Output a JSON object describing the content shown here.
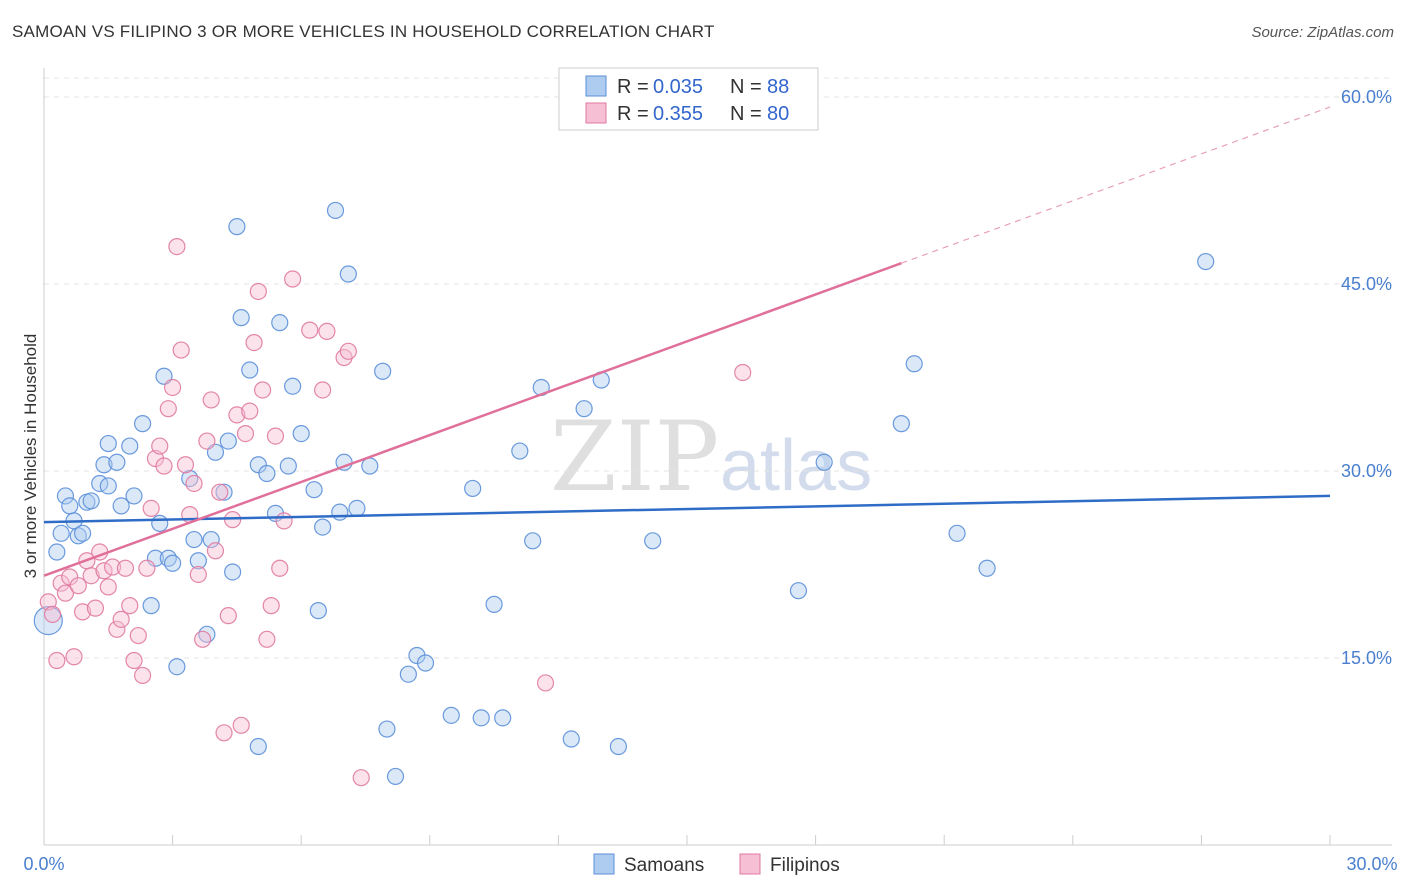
{
  "chart_data": {
    "type": "scatter",
    "title": "SAMOAN VS FILIPINO 3 OR MORE VEHICLES IN HOUSEHOLD CORRELATION CHART",
    "source": "Source: ZipAtlas.com",
    "xlabel": "",
    "ylabel": "3 or more Vehicles in Household",
    "xlim": [
      0,
      30
    ],
    "ylim": [
      0,
      60
    ],
    "x_tick_labels": {
      "left": "0.0%",
      "right": "30.0%"
    },
    "y_ticks": [
      {
        "value": 15,
        "label": "15.0%"
      },
      {
        "value": 30,
        "label": "30.0%"
      },
      {
        "value": 45,
        "label": "45.0%"
      },
      {
        "value": 60,
        "label": "60.0%"
      }
    ],
    "watermark": {
      "zip": "ZIP",
      "atlas": "atlas"
    },
    "legend": [
      {
        "r_label": "R =",
        "r_value": "0.035",
        "n_label": "N =",
        "n_value": "88"
      },
      {
        "r_label": "R =",
        "r_value": "0.355",
        "n_label": "N =",
        "n_value": "80"
      }
    ],
    "series": [
      {
        "name": "Samoans",
        "color": "#5b8fd9",
        "fill": "#aecbf0",
        "trend": {
          "x0": 0,
          "y0": 25.9,
          "x1": 30,
          "y1": 28.0,
          "solid_until": 30
        },
        "points": [
          [
            0.1,
            18.0
          ],
          [
            0.3,
            23.5
          ],
          [
            0.4,
            25.0
          ],
          [
            0.5,
            28.0
          ],
          [
            0.6,
            27.2
          ],
          [
            0.7,
            26.0
          ],
          [
            0.8,
            24.8
          ],
          [
            0.9,
            25.0
          ],
          [
            1.0,
            27.5
          ],
          [
            1.1,
            27.6
          ],
          [
            1.3,
            29.0
          ],
          [
            1.4,
            30.5
          ],
          [
            1.5,
            32.2
          ],
          [
            1.5,
            28.8
          ],
          [
            1.7,
            30.7
          ],
          [
            1.8,
            27.2
          ],
          [
            2.0,
            32.0
          ],
          [
            2.1,
            28.0
          ],
          [
            2.3,
            33.8
          ],
          [
            2.5,
            19.2
          ],
          [
            2.6,
            23.0
          ],
          [
            2.7,
            25.8
          ],
          [
            2.8,
            37.6
          ],
          [
            2.9,
            23.0
          ],
          [
            3.0,
            22.6
          ],
          [
            3.1,
            14.3
          ],
          [
            3.4,
            29.4
          ],
          [
            3.5,
            24.5
          ],
          [
            3.6,
            22.8
          ],
          [
            3.8,
            16.9
          ],
          [
            3.9,
            24.5
          ],
          [
            4.0,
            31.5
          ],
          [
            4.2,
            28.3
          ],
          [
            4.3,
            32.4
          ],
          [
            4.4,
            21.9
          ],
          [
            4.5,
            49.6
          ],
          [
            4.6,
            42.3
          ],
          [
            4.8,
            38.1
          ],
          [
            5.0,
            7.9
          ],
          [
            5.0,
            30.5
          ],
          [
            5.2,
            29.8
          ],
          [
            5.4,
            26.6
          ],
          [
            5.5,
            41.9
          ],
          [
            5.7,
            30.4
          ],
          [
            5.8,
            36.8
          ],
          [
            6.0,
            33.0
          ],
          [
            6.3,
            28.5
          ],
          [
            6.4,
            18.8
          ],
          [
            6.5,
            25.5
          ],
          [
            6.8,
            50.9
          ],
          [
            6.9,
            26.7
          ],
          [
            7.0,
            30.7
          ],
          [
            7.1,
            45.8
          ],
          [
            7.3,
            27.0
          ],
          [
            7.6,
            30.4
          ],
          [
            7.9,
            38.0
          ],
          [
            8.0,
            9.3
          ],
          [
            8.2,
            5.5
          ],
          [
            8.5,
            13.7
          ],
          [
            8.7,
            15.2
          ],
          [
            8.9,
            14.6
          ],
          [
            9.5,
            10.4
          ],
          [
            10.0,
            28.6
          ],
          [
            10.2,
            10.2
          ],
          [
            10.5,
            19.3
          ],
          [
            10.7,
            10.2
          ],
          [
            11.1,
            31.6
          ],
          [
            11.4,
            24.4
          ],
          [
            11.6,
            36.7
          ],
          [
            12.3,
            8.5
          ],
          [
            12.6,
            35.0
          ],
          [
            13.0,
            37.3
          ],
          [
            13.4,
            7.9
          ],
          [
            14.2,
            24.4
          ],
          [
            17.6,
            20.4
          ],
          [
            18.2,
            30.7
          ],
          [
            20.0,
            33.8
          ],
          [
            20.3,
            38.6
          ],
          [
            21.3,
            25.0
          ],
          [
            22.0,
            22.2
          ],
          [
            27.1,
            46.8
          ]
        ]
      },
      {
        "name": "Filipinos",
        "color": "#e07aa0",
        "fill": "#f7bfd3",
        "trend": {
          "x0": 0,
          "y0": 21.6,
          "x1": 30,
          "y1": 59.2,
          "solid_until": 20
        },
        "points": [
          [
            0.1,
            19.5
          ],
          [
            0.2,
            18.5
          ],
          [
            0.3,
            14.8
          ],
          [
            0.4,
            21.0
          ],
          [
            0.5,
            20.2
          ],
          [
            0.6,
            21.5
          ],
          [
            0.7,
            15.1
          ],
          [
            0.8,
            20.8
          ],
          [
            0.9,
            18.7
          ],
          [
            1.0,
            22.8
          ],
          [
            1.1,
            21.6
          ],
          [
            1.2,
            19.0
          ],
          [
            1.3,
            23.5
          ],
          [
            1.4,
            22.0
          ],
          [
            1.5,
            20.7
          ],
          [
            1.6,
            22.3
          ],
          [
            1.7,
            17.3
          ],
          [
            1.8,
            18.1
          ],
          [
            1.9,
            22.2
          ],
          [
            2.0,
            19.2
          ],
          [
            2.1,
            14.8
          ],
          [
            2.2,
            16.8
          ],
          [
            2.3,
            13.6
          ],
          [
            2.4,
            22.2
          ],
          [
            2.5,
            27.0
          ],
          [
            2.6,
            31.0
          ],
          [
            2.7,
            32.0
          ],
          [
            2.8,
            30.4
          ],
          [
            2.9,
            35.0
          ],
          [
            3.0,
            36.7
          ],
          [
            3.1,
            48.0
          ],
          [
            3.2,
            39.7
          ],
          [
            3.3,
            30.5
          ],
          [
            3.4,
            26.5
          ],
          [
            3.5,
            29.0
          ],
          [
            3.6,
            21.7
          ],
          [
            3.7,
            16.5
          ],
          [
            3.8,
            32.4
          ],
          [
            3.9,
            35.7
          ],
          [
            4.0,
            23.6
          ],
          [
            4.1,
            28.3
          ],
          [
            4.2,
            9.0
          ],
          [
            4.3,
            18.4
          ],
          [
            4.4,
            26.1
          ],
          [
            4.5,
            34.5
          ],
          [
            4.6,
            9.6
          ],
          [
            4.7,
            33.0
          ],
          [
            4.8,
            34.8
          ],
          [
            4.9,
            40.3
          ],
          [
            5.0,
            44.4
          ],
          [
            5.1,
            36.5
          ],
          [
            5.2,
            16.5
          ],
          [
            5.3,
            19.2
          ],
          [
            5.4,
            32.8
          ],
          [
            5.5,
            22.2
          ],
          [
            5.6,
            26.0
          ],
          [
            5.8,
            45.4
          ],
          [
            6.2,
            41.3
          ],
          [
            6.5,
            36.5
          ],
          [
            6.6,
            41.2
          ],
          [
            7.0,
            39.1
          ],
          [
            7.1,
            39.6
          ],
          [
            7.4,
            5.4
          ],
          [
            11.7,
            13.0
          ],
          [
            16.3,
            37.9
          ]
        ]
      }
    ]
  },
  "bottom_legend": [
    {
      "label": "Samoans"
    },
    {
      "label": "Filipinos"
    }
  ]
}
